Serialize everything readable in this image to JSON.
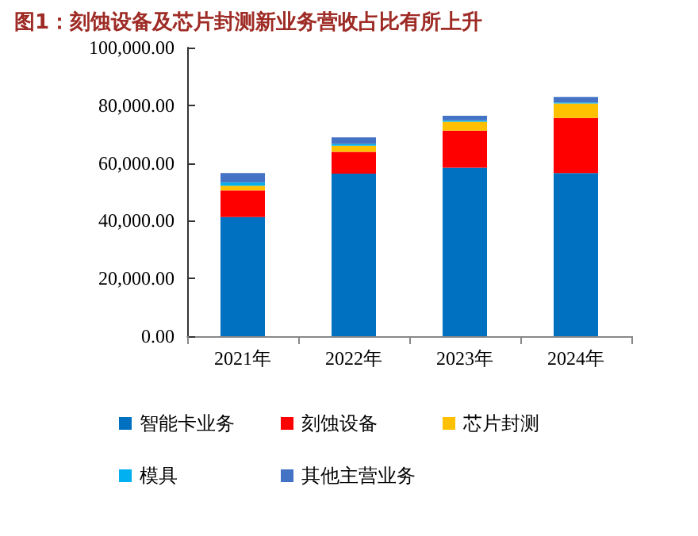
{
  "chart_data": {
    "type": "bar",
    "title": "图1：刻蚀设备及芯片封测新业务营收占比有所上升",
    "categories": [
      "2021年",
      "2022年",
      "2023年",
      "2024年"
    ],
    "stacked": true,
    "series": [
      {
        "name": "智能卡业务",
        "color": "#0070c0",
        "values": [
          41300,
          56300,
          58400,
          56500
        ]
      },
      {
        "name": "刻蚀设备",
        "color": "#ff0000",
        "values": [
          9200,
          7600,
          12800,
          19100
        ]
      },
      {
        "name": "芯片封测",
        "color": "#ffc000",
        "values": [
          1600,
          2100,
          3100,
          5000
        ]
      },
      {
        "name": "模具",
        "color": "#00b0f0",
        "values": [
          1100,
          600,
          500,
          400
        ]
      },
      {
        "name": "其他主营业务",
        "color": "#4472c4",
        "values": [
          3300,
          2300,
          1600,
          1900
        ]
      }
    ],
    "ylim": [
      0,
      100000
    ],
    "yticks": [
      {
        "value": 0,
        "label": "0.00"
      },
      {
        "value": 20000,
        "label": "20,000.00"
      },
      {
        "value": 40000,
        "label": "40,000.00"
      },
      {
        "value": 60000,
        "label": "60,000.00"
      },
      {
        "value": 80000,
        "label": "80,000.00"
      },
      {
        "value": 100000,
        "label": "100,000.00"
      }
    ],
    "grid": false,
    "legend": "bottom"
  }
}
